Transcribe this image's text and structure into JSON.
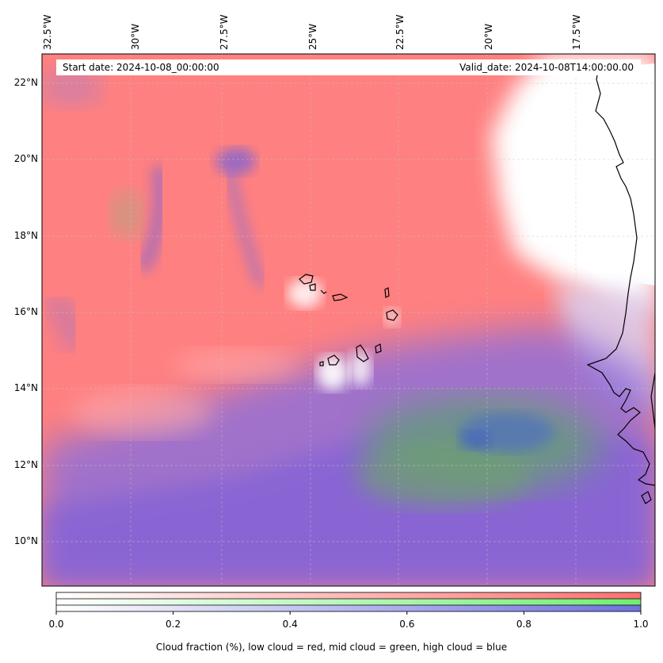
{
  "map": {
    "region": "Eastern tropical Atlantic off West Africa (Cape Verde)",
    "lon_ticks": [
      "32.5°W",
      "30°W",
      "27.5°W",
      "25°W",
      "22.5°W",
      "20°W",
      "17.5°W"
    ],
    "lat_ticks": [
      "22°N",
      "20°N",
      "18°N",
      "16°N",
      "14°N",
      "12°N",
      "10°N"
    ],
    "start_date_text": "Start date: 2024-10-08_00:00:00",
    "valid_date_text": "Valid_date: 2024-10-08T14:00:00.00",
    "colors": {
      "low_cloud": "#ff7f7f",
      "mid_cloud": "#80e080",
      "high_cloud": "#7070e0",
      "clear": "#ffffff",
      "coastline": "#000000",
      "gridline": "#bbbbbb"
    }
  },
  "colorbar": {
    "ticks": [
      "0.0",
      "0.2",
      "0.4",
      "0.6",
      "0.8",
      "1.0"
    ],
    "label": "Cloud fraction (%), low cloud = red, mid cloud = green, high cloud = blue",
    "bands": [
      "red",
      "green",
      "blue"
    ]
  }
}
